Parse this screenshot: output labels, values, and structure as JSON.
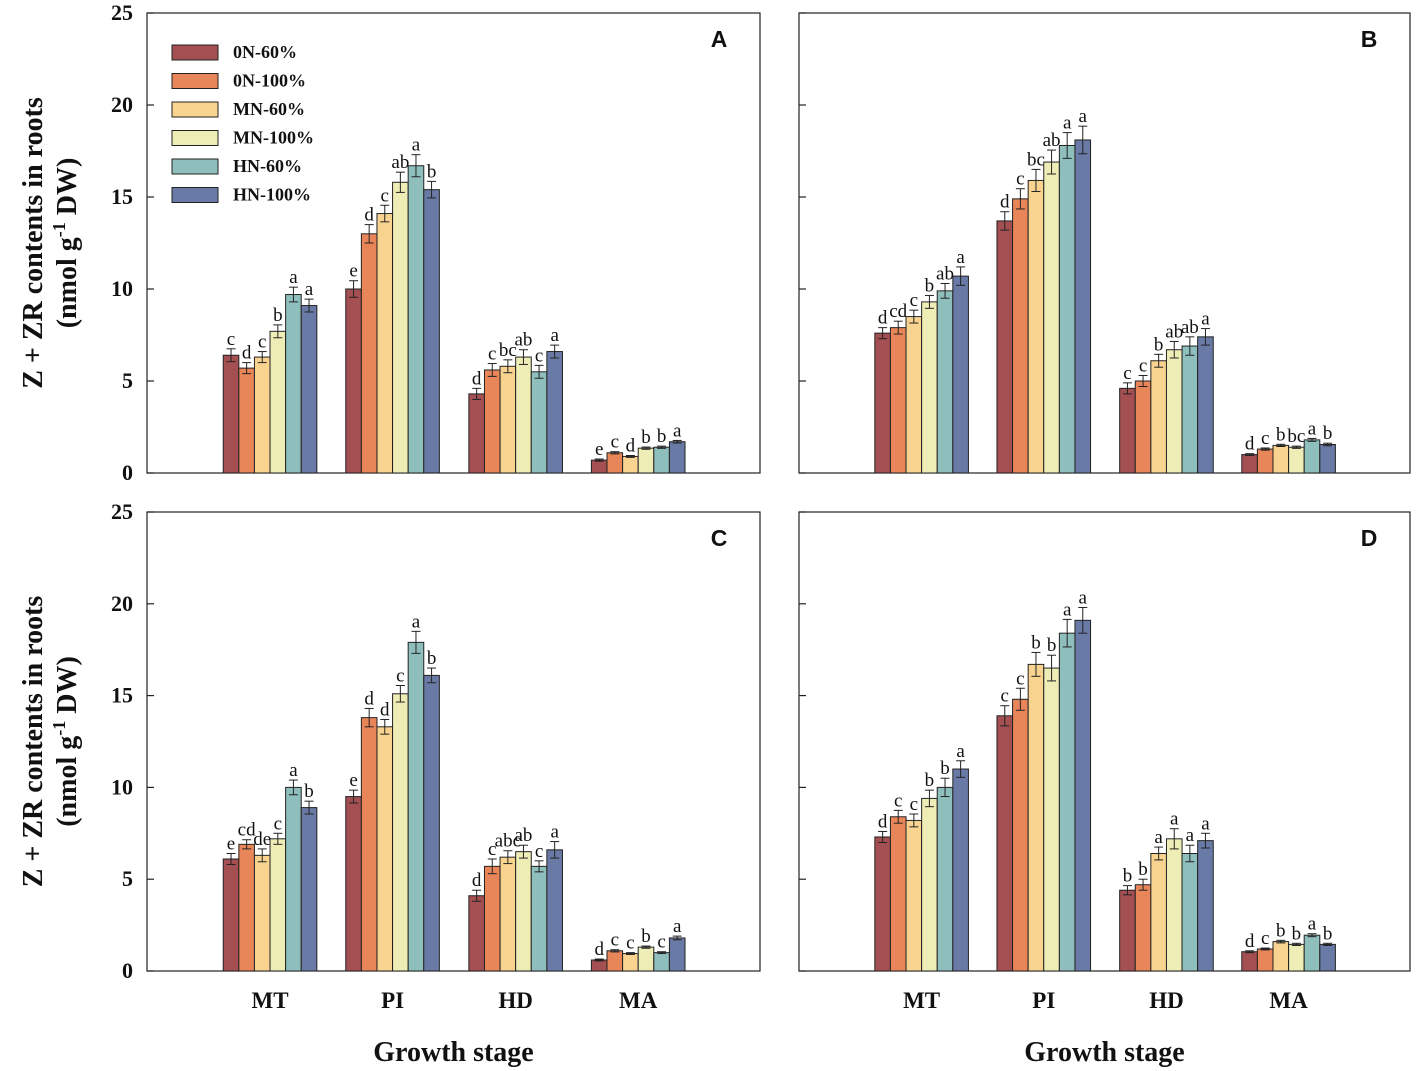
{
  "figure": {
    "ylabel_line1": "Z + ZR contents in roots",
    "ylabel_line2_prefix": "(nmol  g",
    "ylabel_line2_sup": "-1",
    "ylabel_line2_suffix": " DW)",
    "xlabel": "Growth stage"
  },
  "legend": [
    {
      "name": "0N-60%",
      "color": "#a44f52"
    },
    {
      "name": "0N-100%",
      "color": "#e8865a"
    },
    {
      "name": "MN-60%",
      "color": "#f9d491"
    },
    {
      "name": "MN-100%",
      "color": "#eeedb6"
    },
    {
      "name": "HN-60%",
      "color": "#8fbfbc"
    },
    {
      "name": "HN-100%",
      "color": "#6a7aa6"
    }
  ],
  "chart_data": [
    {
      "panel": "A",
      "type": "bar",
      "categories": [
        "MT",
        "PI",
        "HD",
        "MA"
      ],
      "ylim": [
        0,
        25
      ],
      "yticks": [
        "0",
        "5",
        "10",
        "15",
        "20",
        "25"
      ],
      "series": [
        {
          "name": "0N-60%",
          "values": [
            6.4,
            10.0,
            4.3,
            0.7
          ],
          "errors": [
            0.35,
            0.45,
            0.3,
            0.06
          ],
          "letters": [
            "c",
            "e",
            "d",
            "e"
          ]
        },
        {
          "name": "0N-100%",
          "values": [
            5.7,
            13.0,
            5.6,
            1.1
          ],
          "errors": [
            0.3,
            0.5,
            0.35,
            0.06
          ],
          "letters": [
            "d",
            "d",
            "c",
            "c"
          ]
        },
        {
          "name": "MN-60%",
          "values": [
            6.3,
            14.1,
            5.8,
            0.9
          ],
          "errors": [
            0.3,
            0.45,
            0.35,
            0.05
          ],
          "letters": [
            "c",
            "c",
            "bc",
            "d"
          ]
        },
        {
          "name": "MN-100%",
          "values": [
            7.7,
            15.8,
            6.3,
            1.35
          ],
          "errors": [
            0.35,
            0.55,
            0.4,
            0.06
          ],
          "letters": [
            "b",
            "ab",
            "ab",
            "b"
          ]
        },
        {
          "name": "HN-60%",
          "values": [
            9.7,
            16.7,
            5.5,
            1.4
          ],
          "errors": [
            0.4,
            0.6,
            0.35,
            0.06
          ],
          "letters": [
            "a",
            "a",
            "c",
            "b"
          ]
        },
        {
          "name": "HN-100%",
          "values": [
            9.1,
            15.4,
            6.6,
            1.7
          ],
          "errors": [
            0.35,
            0.45,
            0.35,
            0.07
          ],
          "letters": [
            "a",
            "b",
            "a",
            "a"
          ]
        }
      ]
    },
    {
      "panel": "B",
      "type": "bar",
      "categories": [
        "MT",
        "PI",
        "HD",
        "MA"
      ],
      "ylim": [
        0,
        25
      ],
      "yticks": [
        "0",
        "5",
        "10",
        "15",
        "20",
        "25"
      ],
      "series": [
        {
          "name": "0N-60%",
          "values": [
            7.6,
            13.7,
            4.6,
            1.0
          ],
          "errors": [
            0.3,
            0.5,
            0.3,
            0.05
          ],
          "letters": [
            "d",
            "d",
            "c",
            "d"
          ]
        },
        {
          "name": "0N-100%",
          "values": [
            7.9,
            14.9,
            5.0,
            1.3
          ],
          "errors": [
            0.35,
            0.55,
            0.3,
            0.06
          ],
          "letters": [
            "cd",
            "c",
            "c",
            "c"
          ]
        },
        {
          "name": "MN-60%",
          "values": [
            8.5,
            15.9,
            6.1,
            1.5
          ],
          "errors": [
            0.35,
            0.6,
            0.35,
            0.06
          ],
          "letters": [
            "c",
            "bc",
            "b",
            "b"
          ]
        },
        {
          "name": "MN-100%",
          "values": [
            9.3,
            16.9,
            6.7,
            1.4
          ],
          "errors": [
            0.35,
            0.65,
            0.45,
            0.06
          ],
          "letters": [
            "b",
            "ab",
            "ab",
            "bc"
          ]
        },
        {
          "name": "HN-60%",
          "values": [
            9.9,
            17.8,
            6.9,
            1.8
          ],
          "errors": [
            0.4,
            0.7,
            0.5,
            0.08
          ],
          "letters": [
            "ab",
            "a",
            "ab",
            "a"
          ]
        },
        {
          "name": "HN-100%",
          "values": [
            10.7,
            18.1,
            7.4,
            1.55
          ],
          "errors": [
            0.5,
            0.75,
            0.45,
            0.07
          ],
          "letters": [
            "a",
            "a",
            "a",
            "b"
          ]
        }
      ]
    },
    {
      "panel": "C",
      "type": "bar",
      "categories": [
        "MT",
        "PI",
        "HD",
        "MA"
      ],
      "ylim": [
        0,
        25
      ],
      "yticks": [
        "0",
        "5",
        "10",
        "15",
        "20",
        "25"
      ],
      "series": [
        {
          "name": "0N-60%",
          "values": [
            6.1,
            9.5,
            4.1,
            0.6
          ],
          "errors": [
            0.3,
            0.35,
            0.3,
            0.05
          ],
          "letters": [
            "e",
            "e",
            "d",
            "d"
          ]
        },
        {
          "name": "0N-100%",
          "values": [
            6.9,
            13.8,
            5.7,
            1.1
          ],
          "errors": [
            0.25,
            0.5,
            0.4,
            0.06
          ],
          "letters": [
            "cd",
            "d",
            "c",
            "c"
          ]
        },
        {
          "name": "MN-60%",
          "values": [
            6.3,
            13.3,
            6.2,
            0.95
          ],
          "errors": [
            0.35,
            0.4,
            0.35,
            0.05
          ],
          "letters": [
            "de",
            "d",
            "abc",
            "c"
          ]
        },
        {
          "name": "MN-100%",
          "values": [
            7.2,
            15.1,
            6.5,
            1.3
          ],
          "errors": [
            0.3,
            0.45,
            0.35,
            0.06
          ],
          "letters": [
            "c",
            "c",
            "ab",
            "b"
          ]
        },
        {
          "name": "HN-60%",
          "values": [
            10.0,
            17.9,
            5.7,
            1.0
          ],
          "errors": [
            0.4,
            0.6,
            0.3,
            0.05
          ],
          "letters": [
            "a",
            "a",
            "c",
            "c"
          ]
        },
        {
          "name": "HN-100%",
          "values": [
            8.9,
            16.1,
            6.6,
            1.8
          ],
          "errors": [
            0.35,
            0.4,
            0.45,
            0.1
          ],
          "letters": [
            "b",
            "b",
            "a",
            "a"
          ]
        }
      ]
    },
    {
      "panel": "D",
      "type": "bar",
      "categories": [
        "MT",
        "PI",
        "HD",
        "MA"
      ],
      "ylim": [
        0,
        25
      ],
      "yticks": [
        "0",
        "5",
        "10",
        "15",
        "20",
        "25"
      ],
      "series": [
        {
          "name": "0N-60%",
          "values": [
            7.3,
            13.9,
            4.4,
            1.05
          ],
          "errors": [
            0.3,
            0.55,
            0.25,
            0.05
          ],
          "letters": [
            "d",
            "c",
            "b",
            "d"
          ]
        },
        {
          "name": "0N-100%",
          "values": [
            8.4,
            14.8,
            4.7,
            1.2
          ],
          "errors": [
            0.35,
            0.6,
            0.3,
            0.05
          ],
          "letters": [
            "c",
            "c",
            "b",
            "c"
          ]
        },
        {
          "name": "MN-60%",
          "values": [
            8.2,
            16.7,
            6.4,
            1.6
          ],
          "errors": [
            0.35,
            0.65,
            0.35,
            0.07
          ],
          "letters": [
            "c",
            "b",
            "a",
            "b"
          ]
        },
        {
          "name": "MN-100%",
          "values": [
            9.4,
            16.5,
            7.2,
            1.45
          ],
          "errors": [
            0.45,
            0.7,
            0.55,
            0.06
          ],
          "letters": [
            "b",
            "b",
            "a",
            "b"
          ]
        },
        {
          "name": "HN-60%",
          "values": [
            10.0,
            18.4,
            6.4,
            1.95
          ],
          "errors": [
            0.5,
            0.75,
            0.45,
            0.08
          ],
          "letters": [
            "b",
            "a",
            "a",
            "a"
          ]
        },
        {
          "name": "HN-100%",
          "values": [
            11.0,
            19.1,
            7.1,
            1.45
          ],
          "errors": [
            0.45,
            0.7,
            0.4,
            0.06
          ],
          "letters": [
            "a",
            "a",
            "a",
            "b"
          ]
        }
      ]
    }
  ]
}
